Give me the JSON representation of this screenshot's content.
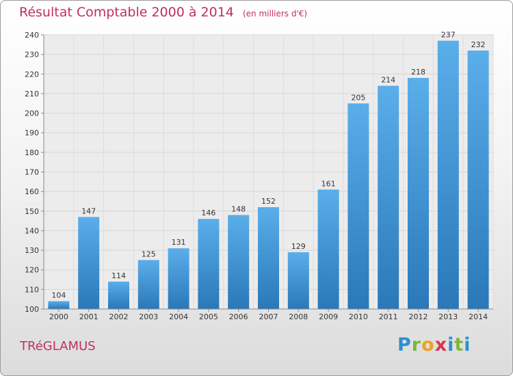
{
  "header": {
    "title": "Résultat Comptable 2000 à 2014",
    "unit": "(en milliers d'€)"
  },
  "town": "TRéGLAMUS",
  "logo": {
    "letters": [
      "P",
      "r",
      "o",
      "x",
      "i",
      "t",
      "i"
    ],
    "text": "Proxiti"
  },
  "colors": {
    "bar_top": "#5aaeea",
    "bar_bottom": "#2a78b8",
    "title": "#c0305a"
  },
  "chart_data": {
    "type": "bar",
    "title": "Résultat Comptable 2000 à 2014",
    "subtitle": "(en milliers d'€)",
    "xlabel": "",
    "ylabel": "",
    "categories": [
      "2000",
      "2001",
      "2002",
      "2003",
      "2004",
      "2005",
      "2006",
      "2007",
      "2008",
      "2009",
      "2010",
      "2011",
      "2012",
      "2013",
      "2014"
    ],
    "values": [
      104,
      147,
      114,
      125,
      131,
      146,
      148,
      152,
      129,
      161,
      205,
      214,
      218,
      237,
      232
    ],
    "ylim": [
      100,
      240
    ],
    "yticks": [
      100,
      110,
      120,
      130,
      140,
      150,
      160,
      170,
      180,
      190,
      200,
      210,
      220,
      230,
      240
    ],
    "grid": true,
    "legend": "none"
  }
}
